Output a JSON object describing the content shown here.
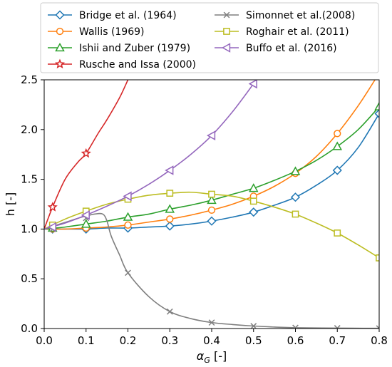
{
  "chart_data": {
    "type": "line",
    "xlabel": "αG [-]",
    "xlabel_main": "α",
    "xlabel_sub": "G",
    "xlabel_unit": " [-]",
    "ylabel": "h [-]",
    "xlim": [
      0,
      0.8
    ],
    "ylim": [
      0,
      2.5
    ],
    "xticks": [
      0.0,
      0.1,
      0.2,
      0.3,
      0.4,
      0.5,
      0.6,
      0.7,
      0.8
    ],
    "xtick_labels": [
      "0.0",
      "0.1",
      "0.2",
      "0.3",
      "0.4",
      "0.5",
      "0.6",
      "0.7",
      "0.8"
    ],
    "yticks": [
      0.0,
      0.5,
      1.0,
      1.5,
      2.0,
      2.5
    ],
    "ytick_labels": [
      "0.0",
      "0.5",
      "1.0",
      "1.5",
      "2.0",
      "2.5"
    ],
    "grid": false,
    "legend_placement": "top",
    "legend_columns": 2,
    "series": [
      {
        "name": "Bridge et al. (1964)",
        "color": "#1f77b4",
        "marker": "diamond",
        "line_x": [
          0,
          0.05,
          0.1,
          0.15,
          0.2,
          0.25,
          0.3,
          0.35,
          0.4,
          0.45,
          0.5,
          0.55,
          0.6,
          0.65,
          0.7,
          0.75,
          0.8
        ],
        "line_y": [
          1.0,
          1.0,
          1.0,
          1.01,
          1.01,
          1.02,
          1.03,
          1.05,
          1.08,
          1.12,
          1.17,
          1.24,
          1.32,
          1.44,
          1.59,
          1.82,
          2.16
        ],
        "marker_x": [
          0.02,
          0.1,
          0.2,
          0.3,
          0.4,
          0.5,
          0.6,
          0.7,
          0.8
        ],
        "marker_y": [
          1.0,
          1.0,
          1.01,
          1.03,
          1.08,
          1.17,
          1.32,
          1.59,
          2.16
        ]
      },
      {
        "name": "Wallis (1969)",
        "color": "#ff7f0e",
        "marker": "circle",
        "line_x": [
          0,
          0.05,
          0.1,
          0.15,
          0.2,
          0.25,
          0.3,
          0.35,
          0.4,
          0.45,
          0.5,
          0.55,
          0.6,
          0.65,
          0.7,
          0.75,
          0.79
        ],
        "line_y": [
          1.0,
          1.0,
          1.01,
          1.02,
          1.04,
          1.07,
          1.1,
          1.14,
          1.19,
          1.25,
          1.33,
          1.43,
          1.56,
          1.73,
          1.96,
          2.24,
          2.5
        ],
        "marker_x": [
          0.02,
          0.1,
          0.2,
          0.3,
          0.4,
          0.5,
          0.6,
          0.7
        ],
        "marker_y": [
          1.0,
          1.01,
          1.04,
          1.1,
          1.19,
          1.33,
          1.56,
          1.96
        ]
      },
      {
        "name": "Ishii and Zuber (1979)",
        "color": "#2ca02c",
        "marker": "triangle-up",
        "line_x": [
          0,
          0.05,
          0.1,
          0.15,
          0.2,
          0.25,
          0.3,
          0.35,
          0.4,
          0.45,
          0.5,
          0.55,
          0.6,
          0.65,
          0.7,
          0.75,
          0.8
        ],
        "line_y": [
          1.0,
          1.02,
          1.05,
          1.08,
          1.12,
          1.15,
          1.2,
          1.24,
          1.29,
          1.35,
          1.41,
          1.49,
          1.58,
          1.69,
          1.83,
          2.0,
          2.23
        ],
        "marker_x": [
          0.02,
          0.1,
          0.2,
          0.3,
          0.4,
          0.5,
          0.6,
          0.7,
          0.8
        ],
        "marker_y": [
          1.01,
          1.05,
          1.12,
          1.2,
          1.29,
          1.41,
          1.58,
          1.83,
          2.23
        ]
      },
      {
        "name": "Rusche and Issa (2000)",
        "color": "#d62728",
        "marker": "star",
        "line_x": [
          0,
          0.02,
          0.05,
          0.08,
          0.1,
          0.13,
          0.15,
          0.18,
          0.2
        ],
        "line_y": [
          1.0,
          1.22,
          1.5,
          1.67,
          1.76,
          1.97,
          2.1,
          2.32,
          2.5
        ],
        "marker_x": [
          0.02,
          0.1
        ],
        "marker_y": [
          1.22,
          1.76
        ]
      },
      {
        "name": "Simonnet et al.(2008)",
        "color": "#7f7f7f",
        "marker": "x",
        "line_x": [
          0,
          0.03,
          0.06,
          0.09,
          0.12,
          0.14,
          0.15,
          0.16,
          0.18,
          0.2,
          0.25,
          0.3,
          0.35,
          0.4,
          0.45,
          0.5,
          0.55,
          0.6,
          0.7,
          0.8
        ],
        "line_y": [
          1.0,
          1.04,
          1.08,
          1.12,
          1.15,
          1.15,
          1.08,
          0.93,
          0.74,
          0.56,
          0.32,
          0.17,
          0.1,
          0.06,
          0.04,
          0.025,
          0.015,
          0.008,
          0.004,
          0.002
        ],
        "marker_x": [
          0.02,
          0.1,
          0.2,
          0.3,
          0.4,
          0.5,
          0.6,
          0.7,
          0.8
        ],
        "marker_y": [
          1.0,
          1.11,
          0.56,
          0.17,
          0.06,
          0.025,
          0.008,
          0.004,
          0.002
        ]
      },
      {
        "name": "Roghair et al. (2011)",
        "color": "#bcbd22",
        "marker": "square",
        "line_x": [
          0,
          0.05,
          0.1,
          0.15,
          0.2,
          0.25,
          0.3,
          0.35,
          0.4,
          0.45,
          0.5,
          0.55,
          0.6,
          0.65,
          0.7,
          0.75,
          0.8
        ],
        "line_y": [
          1.0,
          1.1,
          1.18,
          1.25,
          1.3,
          1.34,
          1.36,
          1.37,
          1.35,
          1.33,
          1.28,
          1.22,
          1.15,
          1.06,
          0.96,
          0.84,
          0.71
        ],
        "marker_x": [
          0.02,
          0.1,
          0.2,
          0.3,
          0.4,
          0.5,
          0.6,
          0.7,
          0.8
        ],
        "marker_y": [
          1.04,
          1.18,
          1.3,
          1.36,
          1.35,
          1.28,
          1.15,
          0.96,
          0.71
        ]
      },
      {
        "name": "Buffo et al. (2016)",
        "color": "#9467bd",
        "marker": "triangle-left",
        "line_x": [
          0,
          0.05,
          0.1,
          0.15,
          0.2,
          0.25,
          0.3,
          0.35,
          0.4,
          0.45,
          0.5
        ],
        "line_y": [
          1.0,
          1.06,
          1.14,
          1.23,
          1.33,
          1.45,
          1.59,
          1.75,
          1.94,
          2.18,
          2.46
        ],
        "marker_x": [
          0.02,
          0.1,
          0.2,
          0.3,
          0.4,
          0.5
        ],
        "marker_y": [
          1.02,
          1.14,
          1.33,
          1.59,
          1.94,
          2.46
        ]
      }
    ]
  }
}
